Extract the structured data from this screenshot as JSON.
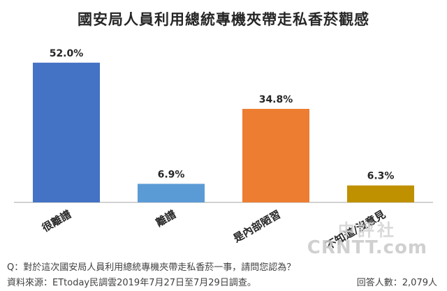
{
  "chart_data": {
    "type": "bar",
    "title": "國安局人員利用總統專機夾帶走私香菸觀感",
    "categories": [
      "很離譜",
      "離譜",
      "是內部陋習",
      "不知道/沒意見"
    ],
    "values": [
      52.0,
      6.9,
      34.8,
      6.3
    ],
    "value_labels": [
      "52.0%",
      "6.9%",
      "34.8%",
      "6.3%"
    ],
    "colors": [
      "#4472C4",
      "#5B9BD5",
      "#ED7D31",
      "#BF9000"
    ],
    "ylim": [
      0,
      60
    ],
    "grid": false,
    "legend": "none",
    "xlabel": "",
    "ylabel": ""
  },
  "footer": {
    "question": "Q：對於這次國安局人員利用總統專機夾帶走私香菸一事，請問您認為？",
    "source": "資料來源：ETtoday民調雲2019年7月27日至7月29日調查。",
    "respondents": "回答人數：2,079人"
  },
  "watermark": {
    "top": "中評社",
    "bottom": "CRNTT.com"
  }
}
